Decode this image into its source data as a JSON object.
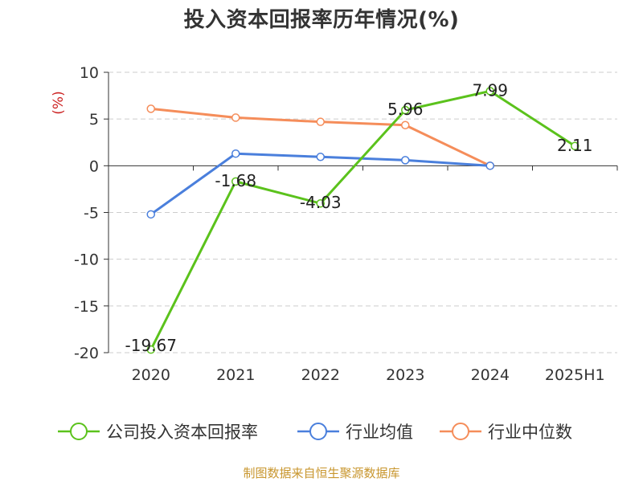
{
  "title": "投入资本回报率历年情况(%)",
  "source": "制图数据来自恒生聚源数据库",
  "chart_data": {
    "type": "line",
    "title": "投入资本回报率历年情况(%)",
    "ylabel": "(%)",
    "ylim": [
      -20,
      10
    ],
    "yticks": [
      10,
      5,
      0,
      -5,
      -10,
      -15,
      -20
    ],
    "categories": [
      "2020",
      "2021",
      "2022",
      "2023",
      "2024",
      "2025H1"
    ],
    "grid": "horizontal dashed",
    "legend_position": "bottom",
    "series": [
      {
        "name": "公司投入资本回报率",
        "color": "#5bc21c",
        "values": [
          -19.67,
          -1.68,
          -4.03,
          5.96,
          7.99,
          2.11
        ],
        "labels": [
          "-19.67",
          "-1.68",
          "-4.03",
          "5.96",
          "7.99",
          "2.11"
        ],
        "show_labels": true
      },
      {
        "name": "行业均值",
        "color": "#4a7fdc",
        "values": [
          -5.2,
          1.3,
          0.95,
          0.6,
          0.0,
          null
        ],
        "show_labels": false
      },
      {
        "name": "行业中位数",
        "color": "#f58d5a",
        "values": [
          6.1,
          5.15,
          4.7,
          4.35,
          0.0,
          null
        ],
        "show_labels": false
      }
    ]
  }
}
